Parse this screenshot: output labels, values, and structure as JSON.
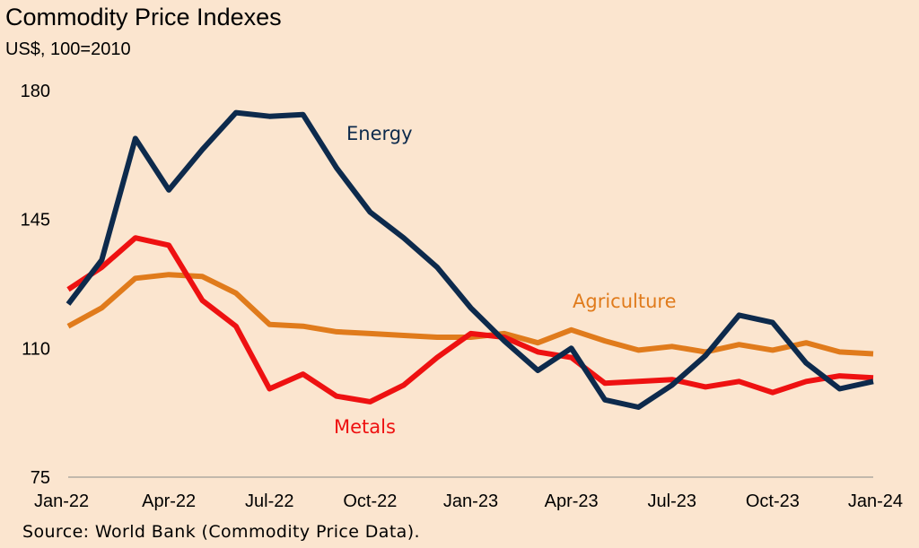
{
  "chart_data": {
    "type": "line",
    "title": "Commodity Price Indexes",
    "subtitle": "US$, 100=2010",
    "xlabel": "",
    "ylabel": "",
    "ylim": [
      75,
      180
    ],
    "yticks": [
      75,
      110,
      145,
      180
    ],
    "grid": false,
    "x": [
      "Jan-22",
      "Feb-22",
      "Mar-22",
      "Apr-22",
      "May-22",
      "Jun-22",
      "Jul-22",
      "Aug-22",
      "Sep-22",
      "Oct-22",
      "Nov-22",
      "Dec-22",
      "Jan-23",
      "Feb-23",
      "Mar-23",
      "Apr-23",
      "May-23",
      "Jun-23",
      "Jul-23",
      "Aug-23",
      "Sep-23",
      "Oct-23",
      "Nov-23",
      "Dec-23",
      "Jan-24"
    ],
    "xtick_labels": [
      "Jan-22",
      "Apr-22",
      "Jul-22",
      "Oct-22",
      "Jan-23",
      "Apr-23",
      "Jul-23",
      "Oct-23",
      "Jan-24"
    ],
    "series": [
      {
        "name": "Energy",
        "color": "#0d2a4c",
        "values": [
          122,
          134,
          167,
          153,
          164,
          174,
          173,
          173.5,
          159,
          147,
          140,
          132,
          121,
          112,
          104,
          110,
          96,
          94,
          100,
          108,
          119,
          117,
          106,
          99,
          101
        ]
      },
      {
        "name": "Metals",
        "color": "#ee1111",
        "values": [
          126,
          132,
          140,
          138,
          123,
          116,
          99,
          103,
          97,
          95.5,
          100,
          107.5,
          114,
          113,
          109,
          107.5,
          100.5,
          101,
          101.5,
          99.5,
          101,
          98,
          101,
          102.5,
          102
        ]
      },
      {
        "name": "Agriculture",
        "color": "#e07b1c",
        "values": [
          116,
          121,
          129,
          130,
          129.5,
          125,
          116.5,
          116,
          114.5,
          114,
          113.5,
          113,
          113,
          114,
          111.5,
          115,
          112,
          109.5,
          110.5,
          109,
          111,
          109.5,
          111.5,
          109,
          108.5
        ]
      }
    ],
    "source": "Source: World Bank (Commodity Price Data)."
  }
}
